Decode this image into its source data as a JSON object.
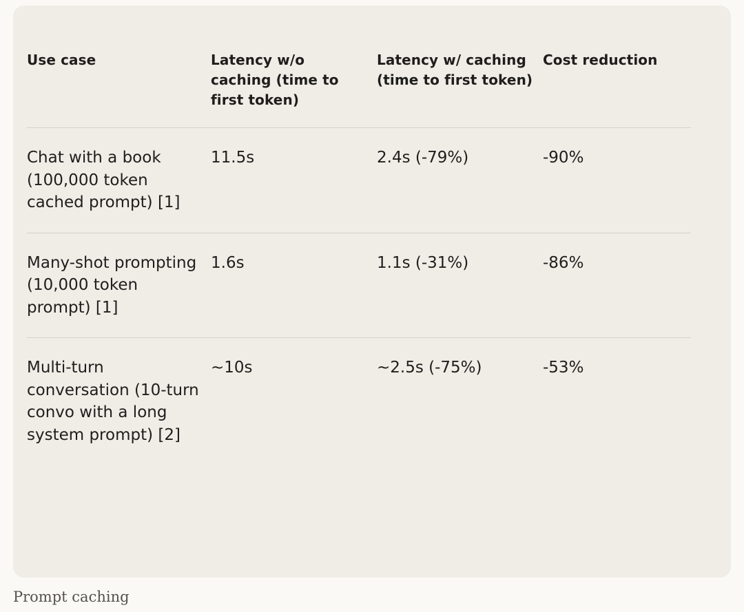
{
  "table": {
    "headers": [
      "Use case",
      "Latency w/o caching (time to first token)",
      "Latency w/ caching (time to first token)",
      "Cost reduction"
    ],
    "rows": [
      {
        "use_case": "Chat with a book (100,000 token cached prompt) [1]",
        "latency_without": "11.5s",
        "latency_with": "2.4s (-79%)",
        "cost_reduction": "-90%"
      },
      {
        "use_case": "Many-shot prompting (10,000 token prompt) [1]",
        "latency_without": "1.6s",
        "latency_with": "1.1s (-31%)",
        "cost_reduction": "-86%"
      },
      {
        "use_case": "Multi-turn conversation (10-turn convo with a long system prompt) [2]",
        "latency_without": "~10s",
        "latency_with": "~2.5s (-75%)",
        "cost_reduction": "-53%"
      }
    ]
  },
  "caption": "Prompt caching"
}
